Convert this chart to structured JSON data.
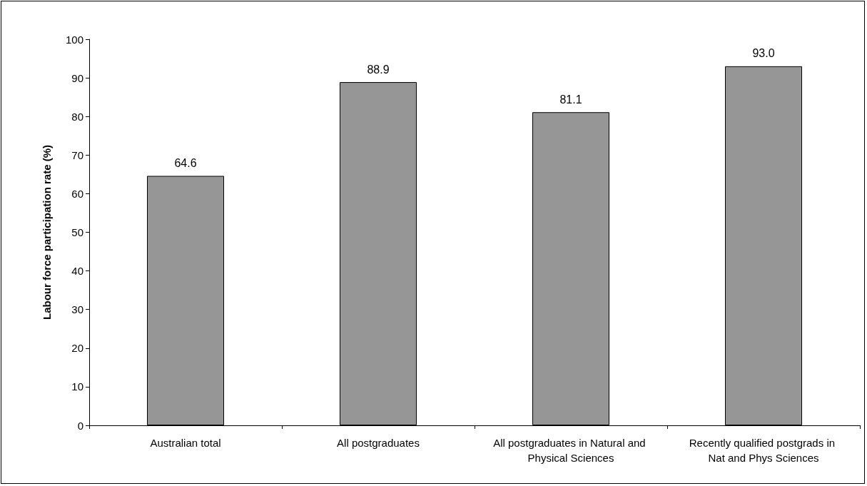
{
  "chart_data": {
    "type": "bar",
    "ylabel": "Labour force participation rate (%)",
    "categories": [
      "Australian total",
      "All postgraduates",
      "All postgraduates in Natural and Physical Sciences",
      "Recently qualified postgrads in Nat and Phys Sciences"
    ],
    "values": [
      64.6,
      88.9,
      81.1,
      93.0
    ],
    "value_labels": [
      "64.6",
      "88.9",
      "81.1",
      "93.0"
    ],
    "color": "#969696",
    "ylim": [
      0,
      100
    ],
    "yticks": [
      0,
      10,
      20,
      30,
      40,
      50,
      60,
      70,
      80,
      90,
      100
    ],
    "grid": false
  }
}
